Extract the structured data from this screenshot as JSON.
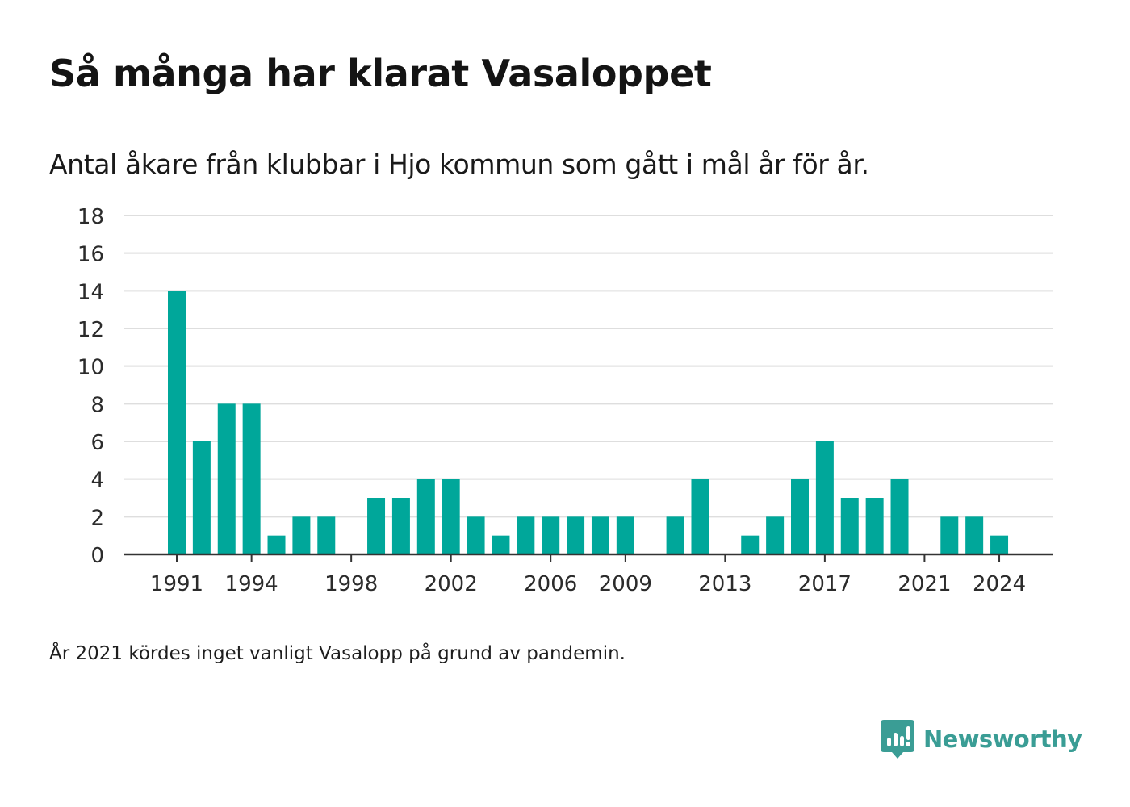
{
  "title": "Så många har klarat Vasaloppet",
  "subtitle": "Antal åkare från klubbar i Hjo kommun som gått i mål år för år.",
  "footnote": "År 2021 kördes inget vanligt Vasalopp på grund av pandemin.",
  "brand": {
    "name": "Newsworthy",
    "icon": "newsworthy-logo-icon",
    "color": "#3a9d95"
  },
  "chart_data": {
    "type": "bar",
    "bar_color": "#00a79a",
    "x": [
      1991,
      1992,
      1993,
      1994,
      1995,
      1996,
      1997,
      1998,
      1999,
      2000,
      2001,
      2002,
      2003,
      2004,
      2005,
      2006,
      2007,
      2008,
      2009,
      2010,
      2011,
      2012,
      2013,
      2014,
      2015,
      2016,
      2017,
      2018,
      2019,
      2020,
      2021,
      2022,
      2023,
      2024
    ],
    "values": [
      14,
      6,
      8,
      8,
      1,
      2,
      2,
      0,
      3,
      3,
      4,
      4,
      2,
      1,
      2,
      2,
      2,
      2,
      2,
      0,
      2,
      4,
      0,
      1,
      2,
      4,
      6,
      3,
      3,
      4,
      0,
      2,
      2,
      1
    ],
    "x_ticks": [
      1991,
      1994,
      1998,
      2002,
      2006,
      2009,
      2013,
      2017,
      2021,
      2024
    ],
    "y_ticks": [
      0,
      2,
      4,
      6,
      8,
      10,
      12,
      14,
      16,
      18
    ],
    "ylim": [
      0,
      18
    ],
    "xlabel": "",
    "ylabel": "",
    "grid": true
  }
}
